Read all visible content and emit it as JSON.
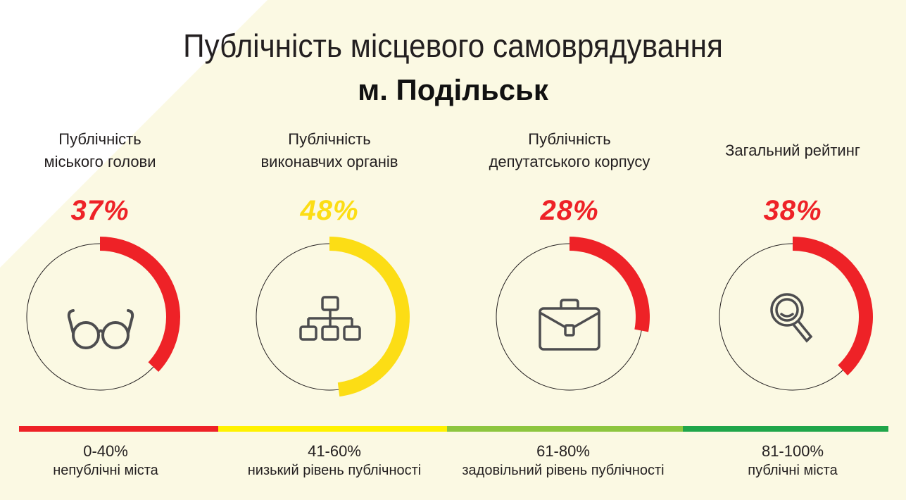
{
  "title": "Публічність місцевого самоврядування",
  "subtitle": "м. Подільськ",
  "colors": {
    "red": "#ee2227",
    "yellow": "#fcdd15",
    "light_green": "#8dc63f",
    "green": "#1fa64a",
    "background": "#fbf9e3",
    "icon": "#4d4d4f"
  },
  "chart_data": [
    {
      "type": "donut",
      "label_line1": "Публічність",
      "label_line2": "міського голови",
      "value": 37,
      "value_label": "37%",
      "color": "#ee2227",
      "icon": "glasses-icon"
    },
    {
      "type": "donut",
      "label_line1": "Публічність",
      "label_line2": "виконавчих органів",
      "value": 48,
      "value_label": "48%",
      "color": "#fcdd15",
      "icon": "org-chart-icon"
    },
    {
      "type": "donut",
      "label_line1": "Публічність",
      "label_line2": "депутатського корпусу",
      "value": 28,
      "value_label": "28%",
      "color": "#ee2227",
      "icon": "briefcase-icon"
    },
    {
      "type": "donut",
      "label_line1": "Загальний рейтинг",
      "label_line2": "",
      "value": 38,
      "value_label": "38%",
      "color": "#ee2227",
      "icon": "magnifier-icon"
    }
  ],
  "scale": [
    {
      "range": "0-40%",
      "description": "непублічні міста",
      "color": "#ee2227"
    },
    {
      "range": "41-60%",
      "description": "низький рівень публічності",
      "color": "#fff200"
    },
    {
      "range": "61-80%",
      "description": "задовільний рівень публічності",
      "color": "#8dc63f"
    },
    {
      "range": "81-100%",
      "description": "публічні міста",
      "color": "#1fa64a"
    }
  ]
}
